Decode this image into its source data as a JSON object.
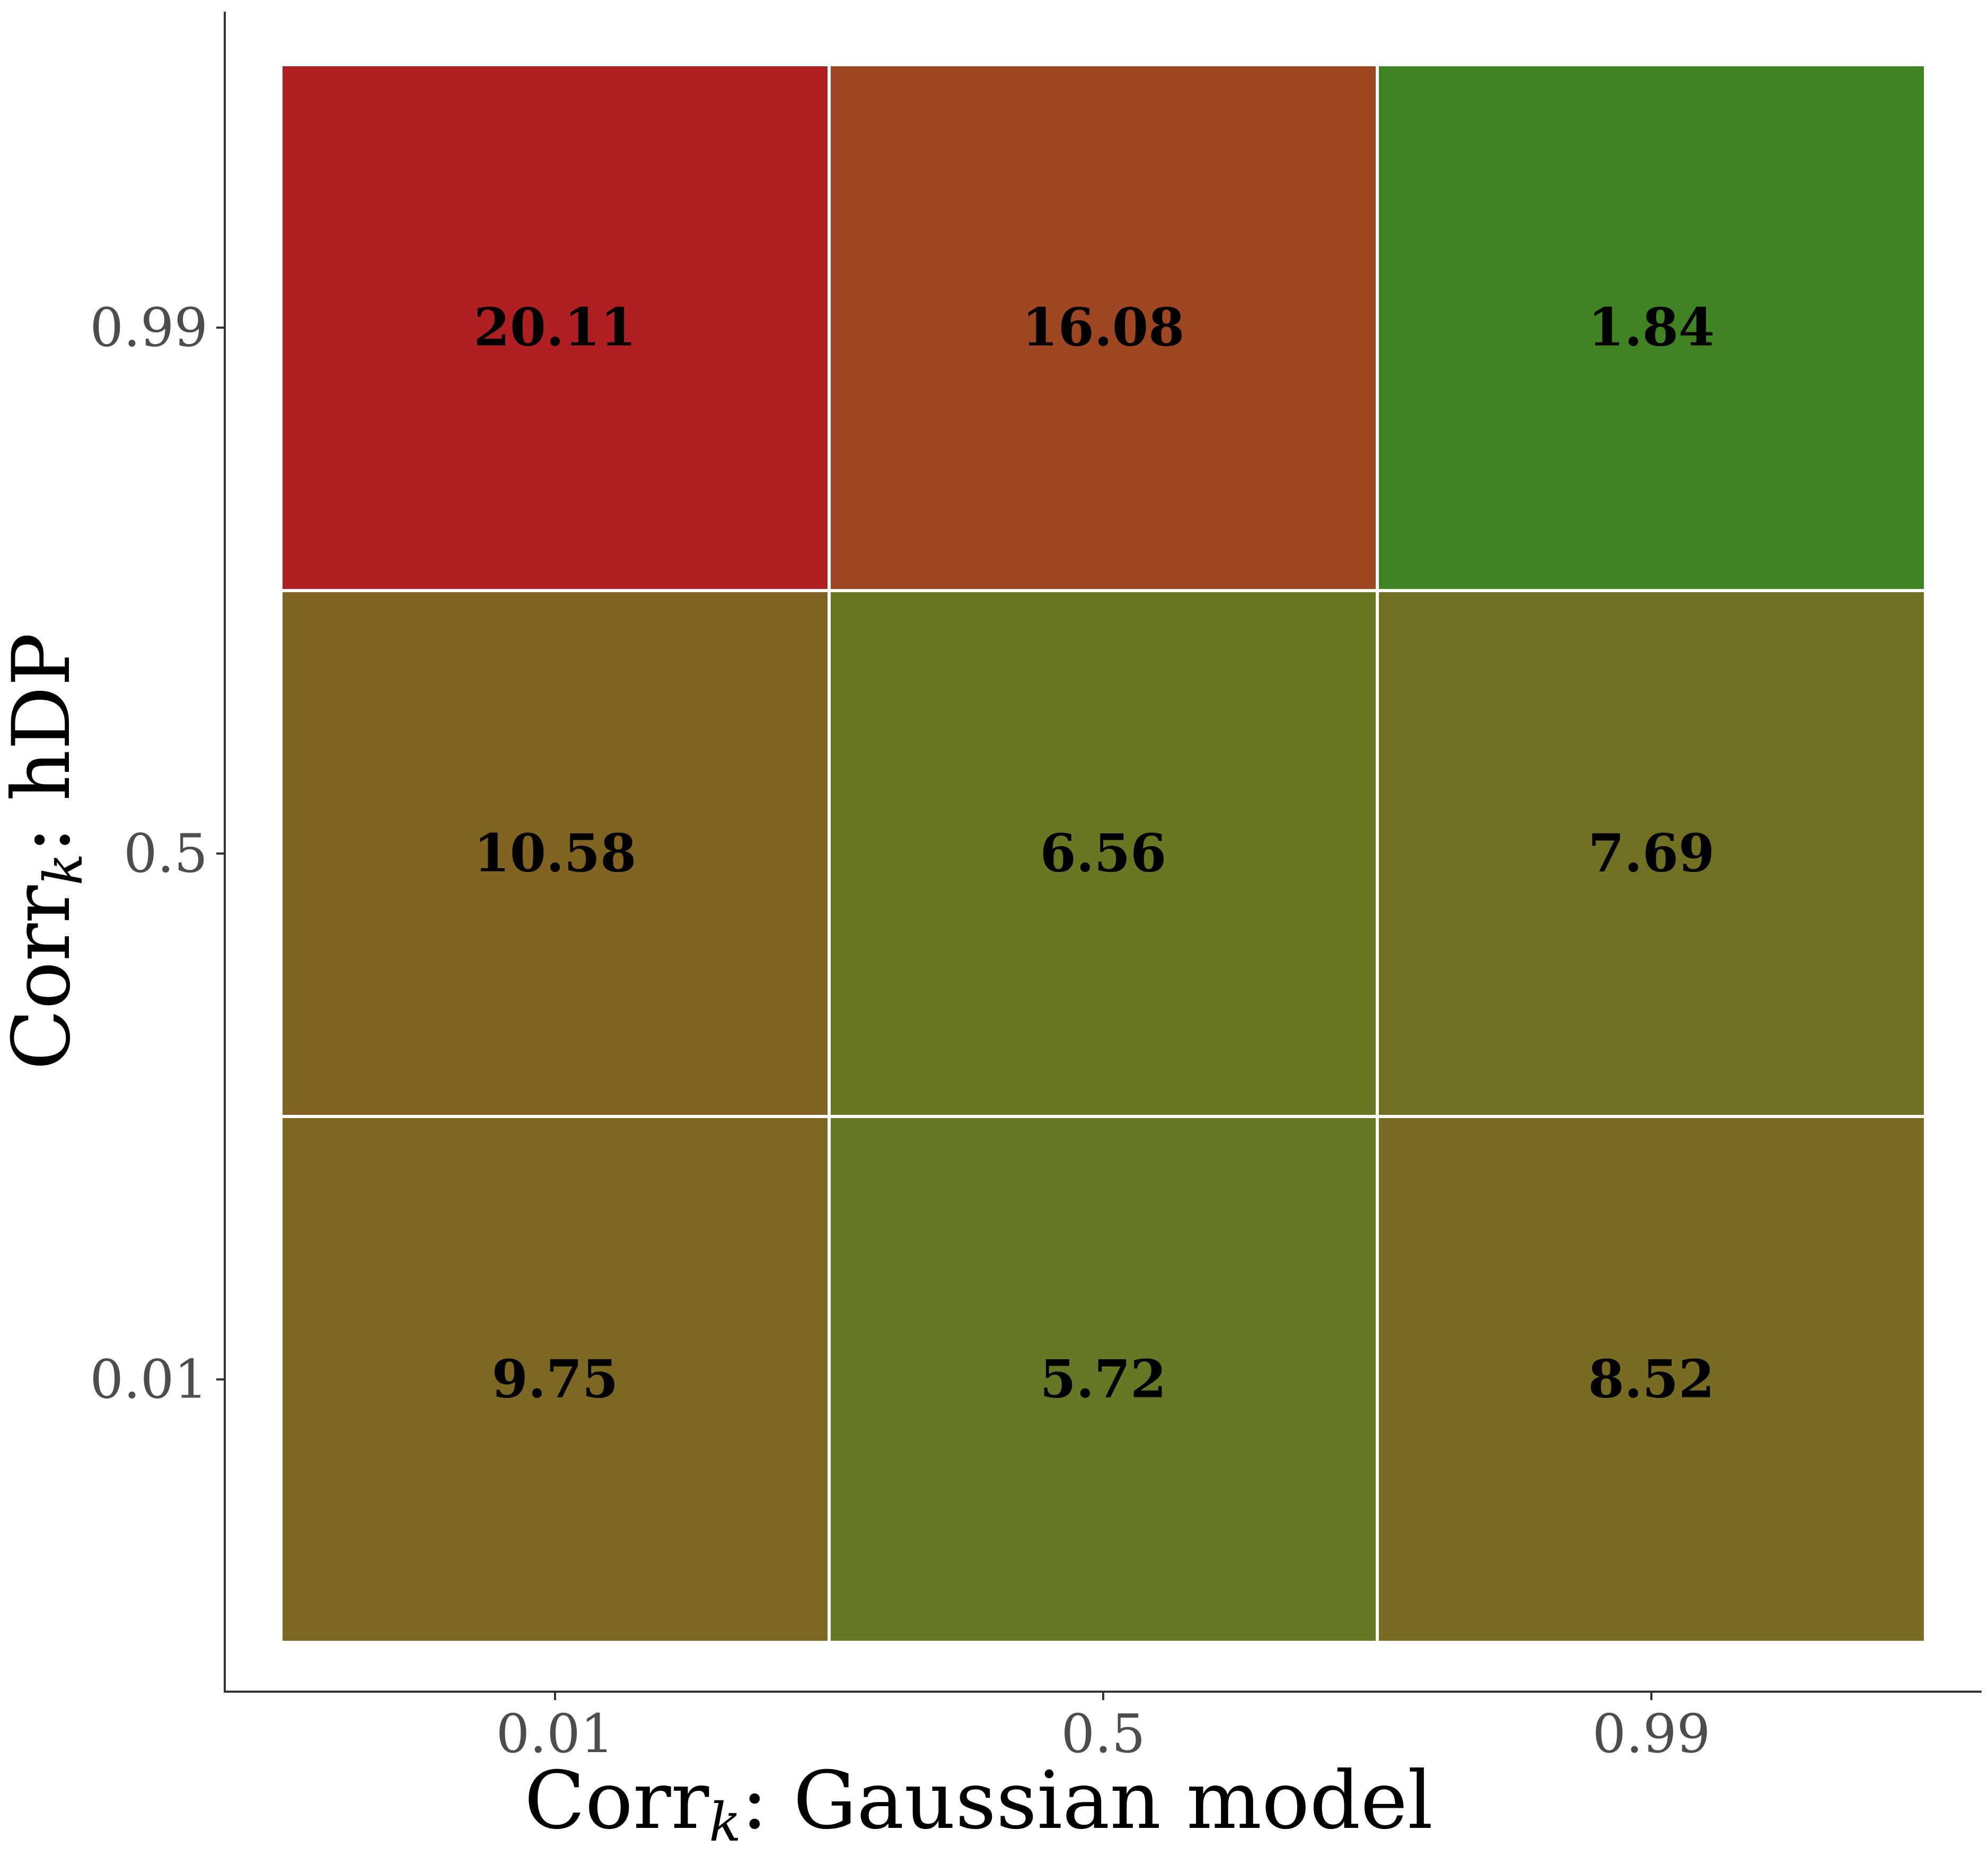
{
  "chart_data": {
    "type": "heatmap",
    "title": "",
    "xlabel": {
      "main": "Corr",
      "sub": "k",
      "rest": ": Gaussian model"
    },
    "ylabel": {
      "main": "Corr",
      "sub": "k",
      "rest": ": hDP"
    },
    "x_categories": [
      "0.01",
      "0.5",
      "0.99"
    ],
    "y_categories": [
      "0.01",
      "0.5",
      "0.99"
    ],
    "values": [
      {
        "x": "0.01",
        "y": "0.99",
        "value": "20.11",
        "color": "#b02023"
      },
      {
        "x": "0.5",
        "y": "0.99",
        "value": "16.08",
        "color": "#9e4722"
      },
      {
        "x": "0.99",
        "y": "0.99",
        "value": "1.84",
        "color": "#3f8323"
      },
      {
        "x": "0.01",
        "y": "0.5",
        "value": "10.58",
        "color": "#826422"
      },
      {
        "x": "0.5",
        "y": "0.5",
        "value": "6.56",
        "color": "#6b7623"
      },
      {
        "x": "0.99",
        "y": "0.5",
        "value": "7.69",
        "color": "#727022"
      },
      {
        "x": "0.01",
        "y": "0.01",
        "value": "9.75",
        "color": "#7c6822"
      },
      {
        "x": "0.5",
        "y": "0.01",
        "value": "5.72",
        "color": "#677824"
      },
      {
        "x": "0.99",
        "y": "0.01",
        "value": "8.52",
        "color": "#776c22"
      }
    ],
    "grid": false,
    "legend": "none"
  }
}
